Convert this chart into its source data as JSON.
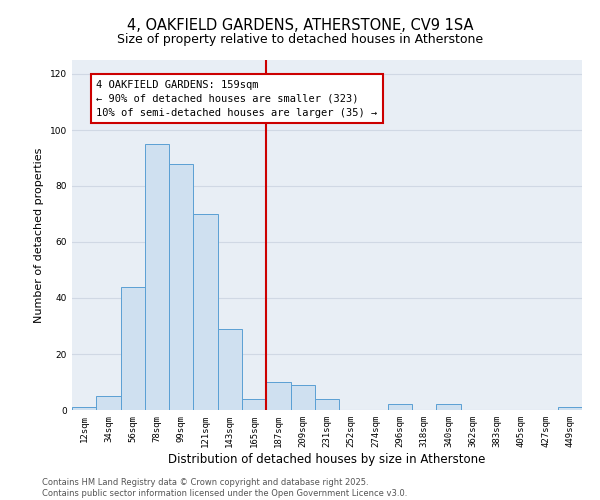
{
  "title_line1": "4, OAKFIELD GARDENS, ATHERSTONE, CV9 1SA",
  "title_line2": "Size of property relative to detached houses in Atherstone",
  "xlabel": "Distribution of detached houses by size in Atherstone",
  "ylabel": "Number of detached properties",
  "categories": [
    "12sqm",
    "34sqm",
    "56sqm",
    "78sqm",
    "99sqm",
    "121sqm",
    "143sqm",
    "165sqm",
    "187sqm",
    "209sqm",
    "231sqm",
    "252sqm",
    "274sqm",
    "296sqm",
    "318sqm",
    "340sqm",
    "362sqm",
    "383sqm",
    "405sqm",
    "427sqm",
    "449sqm"
  ],
  "values": [
    1,
    5,
    44,
    95,
    88,
    70,
    29,
    4,
    10,
    9,
    4,
    0,
    0,
    2,
    0,
    2,
    0,
    0,
    0,
    0,
    1
  ],
  "bar_color": "#cfe0f0",
  "bar_edge_color": "#5a9fd4",
  "grid_color": "#d0d8e4",
  "background_color": "#e8eef5",
  "vline_color": "#cc0000",
  "vline_pos": 7.5,
  "annotation_text": "4 OAKFIELD GARDENS: 159sqm\n← 90% of detached houses are smaller (323)\n10% of semi-detached houses are larger (35) →",
  "ylim": [
    0,
    125
  ],
  "yticks": [
    0,
    20,
    40,
    60,
    80,
    100,
    120
  ],
  "footer_line1": "Contains HM Land Registry data © Crown copyright and database right 2025.",
  "footer_line2": "Contains public sector information licensed under the Open Government Licence v3.0.",
  "title_fontsize": 10.5,
  "subtitle_fontsize": 9,
  "ylabel_fontsize": 8,
  "xlabel_fontsize": 8.5,
  "tick_fontsize": 6.5,
  "annotation_fontsize": 7.5,
  "footer_fontsize": 6
}
